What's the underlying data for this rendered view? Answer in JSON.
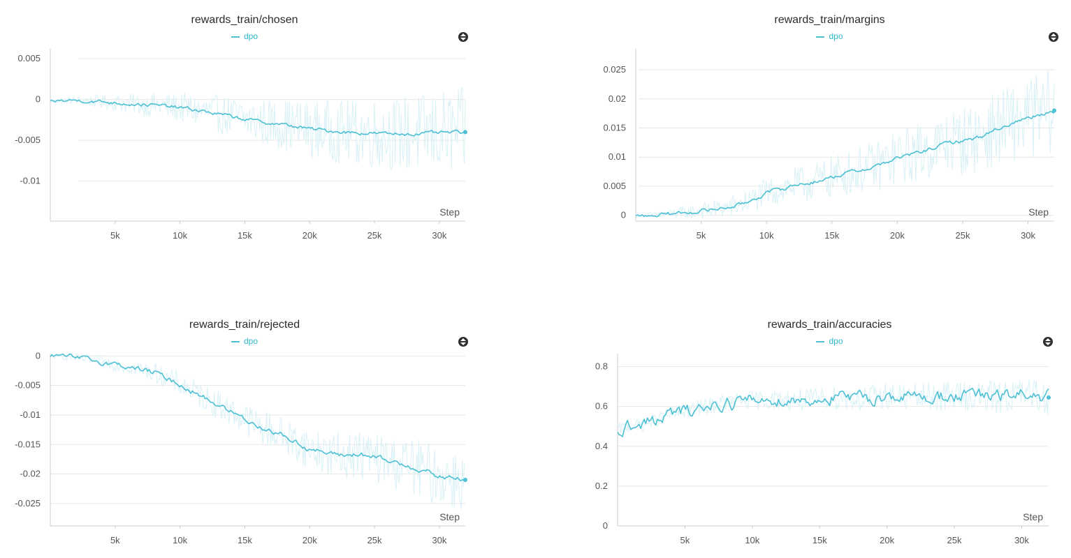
{
  "chart_data": [
    {
      "type": "line",
      "title": "rewards_train/chosen",
      "xlabel": "Step",
      "ylabel": "",
      "xlim": [
        0,
        32000
      ],
      "ylim": [
        -0.0149,
        0.0062
      ],
      "xticks": [
        5000,
        10000,
        15000,
        20000,
        25000,
        30000
      ],
      "xtick_labels": [
        "5k",
        "10k",
        "15k",
        "20k",
        "25k",
        "30k"
      ],
      "yticks": [
        0.005,
        0,
        -0.005,
        -0.01
      ],
      "ytick_labels": [
        "0.005",
        "0",
        "-0.005",
        "-0.01"
      ],
      "grid": true,
      "legend": "top-center",
      "series": [
        {
          "name": "dpo",
          "color": "#4dc0d4",
          "raw_color": "#d9f1f6",
          "noise": [
            0.0002,
            0.0055
          ],
          "x": [
            0,
            2000,
            4000,
            6000,
            8000,
            10000,
            12000,
            14000,
            16000,
            18000,
            20000,
            22000,
            24000,
            26000,
            28000,
            30000,
            32000
          ],
          "y": [
            -0.0002,
            -0.0001,
            -0.0003,
            -0.0005,
            -0.0007,
            -0.001,
            -0.0015,
            -0.0021,
            -0.0027,
            -0.0031,
            -0.0036,
            -0.0039,
            -0.0041,
            -0.0042,
            -0.0042,
            -0.0041,
            -0.004
          ]
        }
      ]
    },
    {
      "type": "line",
      "title": "rewards_train/margins",
      "xlabel": "Step",
      "ylabel": "",
      "xlim": [
        0,
        32000
      ],
      "ylim": [
        -0.001,
        0.0286
      ],
      "xticks": [
        5000,
        10000,
        15000,
        20000,
        25000,
        30000
      ],
      "xtick_labels": [
        "5k",
        "10k",
        "15k",
        "20k",
        "25k",
        "30k"
      ],
      "yticks": [
        0.025,
        0.02,
        0.015,
        0.01,
        0.005,
        0
      ],
      "ytick_labels": [
        "0.025",
        "0.02",
        "0.015",
        "0.01",
        "0.005",
        "0"
      ],
      "grid": true,
      "legend": "top-center",
      "series": [
        {
          "name": "dpo",
          "color": "#4dc0d4",
          "raw_color": "#d9f1f6",
          "noise": [
            0.0003,
            0.0075
          ],
          "x": [
            0,
            2000,
            4000,
            6000,
            8000,
            10000,
            12000,
            14000,
            16000,
            18000,
            20000,
            22000,
            24000,
            26000,
            28000,
            30000,
            32000
          ],
          "y": [
            -0.0001,
            0.0001,
            0.0005,
            0.001,
            0.0018,
            0.0038,
            0.0051,
            0.0059,
            0.0072,
            0.0082,
            0.0098,
            0.011,
            0.0125,
            0.0132,
            0.0152,
            0.0168,
            0.018
          ]
        }
      ]
    },
    {
      "type": "line",
      "title": "rewards_train/rejected",
      "xlabel": "Step",
      "ylabel": "",
      "xlim": [
        0,
        32000
      ],
      "ylim": [
        -0.0288,
        0.0004
      ],
      "xticks": [
        5000,
        10000,
        15000,
        20000,
        25000,
        30000
      ],
      "xtick_labels": [
        "5k",
        "10k",
        "15k",
        "20k",
        "25k",
        "30k"
      ],
      "yticks": [
        0,
        -0.005,
        -0.01,
        -0.015,
        -0.02,
        -0.025
      ],
      "ytick_labels": [
        "0",
        "-0.005",
        "-0.01",
        "-0.015",
        "-0.02",
        "-0.025"
      ],
      "grid": true,
      "legend": "top-center",
      "series": [
        {
          "name": "dpo",
          "color": "#4dc0d4",
          "raw_color": "#d9f1f6",
          "noise": [
            0.0004,
            0.0055
          ],
          "x": [
            0,
            2000,
            4000,
            6000,
            8000,
            10000,
            12000,
            14000,
            16000,
            18000,
            20000,
            22000,
            24000,
            26000,
            28000,
            30000,
            32000
          ],
          "y": [
            0,
            -0.0003,
            -0.001,
            -0.0018,
            -0.0028,
            -0.0048,
            -0.0072,
            -0.0095,
            -0.0118,
            -0.0135,
            -0.0158,
            -0.0168,
            -0.0167,
            -0.0178,
            -0.0188,
            -0.0205,
            -0.021
          ]
        }
      ]
    },
    {
      "type": "line",
      "title": "rewards_train/accuracies",
      "xlabel": "Step",
      "ylabel": "",
      "xlim": [
        0,
        32000
      ],
      "ylim": [
        0,
        0.865
      ],
      "xticks": [
        5000,
        10000,
        15000,
        20000,
        25000,
        30000
      ],
      "xtick_labels": [
        "5k",
        "10k",
        "15k",
        "20k",
        "25k",
        "30k"
      ],
      "yticks": [
        0.8,
        0.6,
        0.4,
        0.2,
        0
      ],
      "ytick_labels": [
        "0.8",
        "0.6",
        "0.4",
        "0.2",
        "0"
      ],
      "grid": true,
      "legend": "top-center",
      "series": [
        {
          "name": "dpo",
          "color": "#4dc0d4",
          "raw_color": "#d9f1f6",
          "noise": [
            0.03,
            0.09
          ],
          "x": [
            0,
            1000,
            2000,
            4000,
            6000,
            8000,
            10000,
            12000,
            14000,
            16000,
            18000,
            20000,
            22000,
            24000,
            26000,
            28000,
            30000,
            32000
          ],
          "y": [
            0.49,
            0.5,
            0.51,
            0.56,
            0.59,
            0.62,
            0.63,
            0.635,
            0.63,
            0.645,
            0.635,
            0.655,
            0.645,
            0.65,
            0.655,
            0.645,
            0.66,
            0.645
          ]
        }
      ]
    }
  ]
}
